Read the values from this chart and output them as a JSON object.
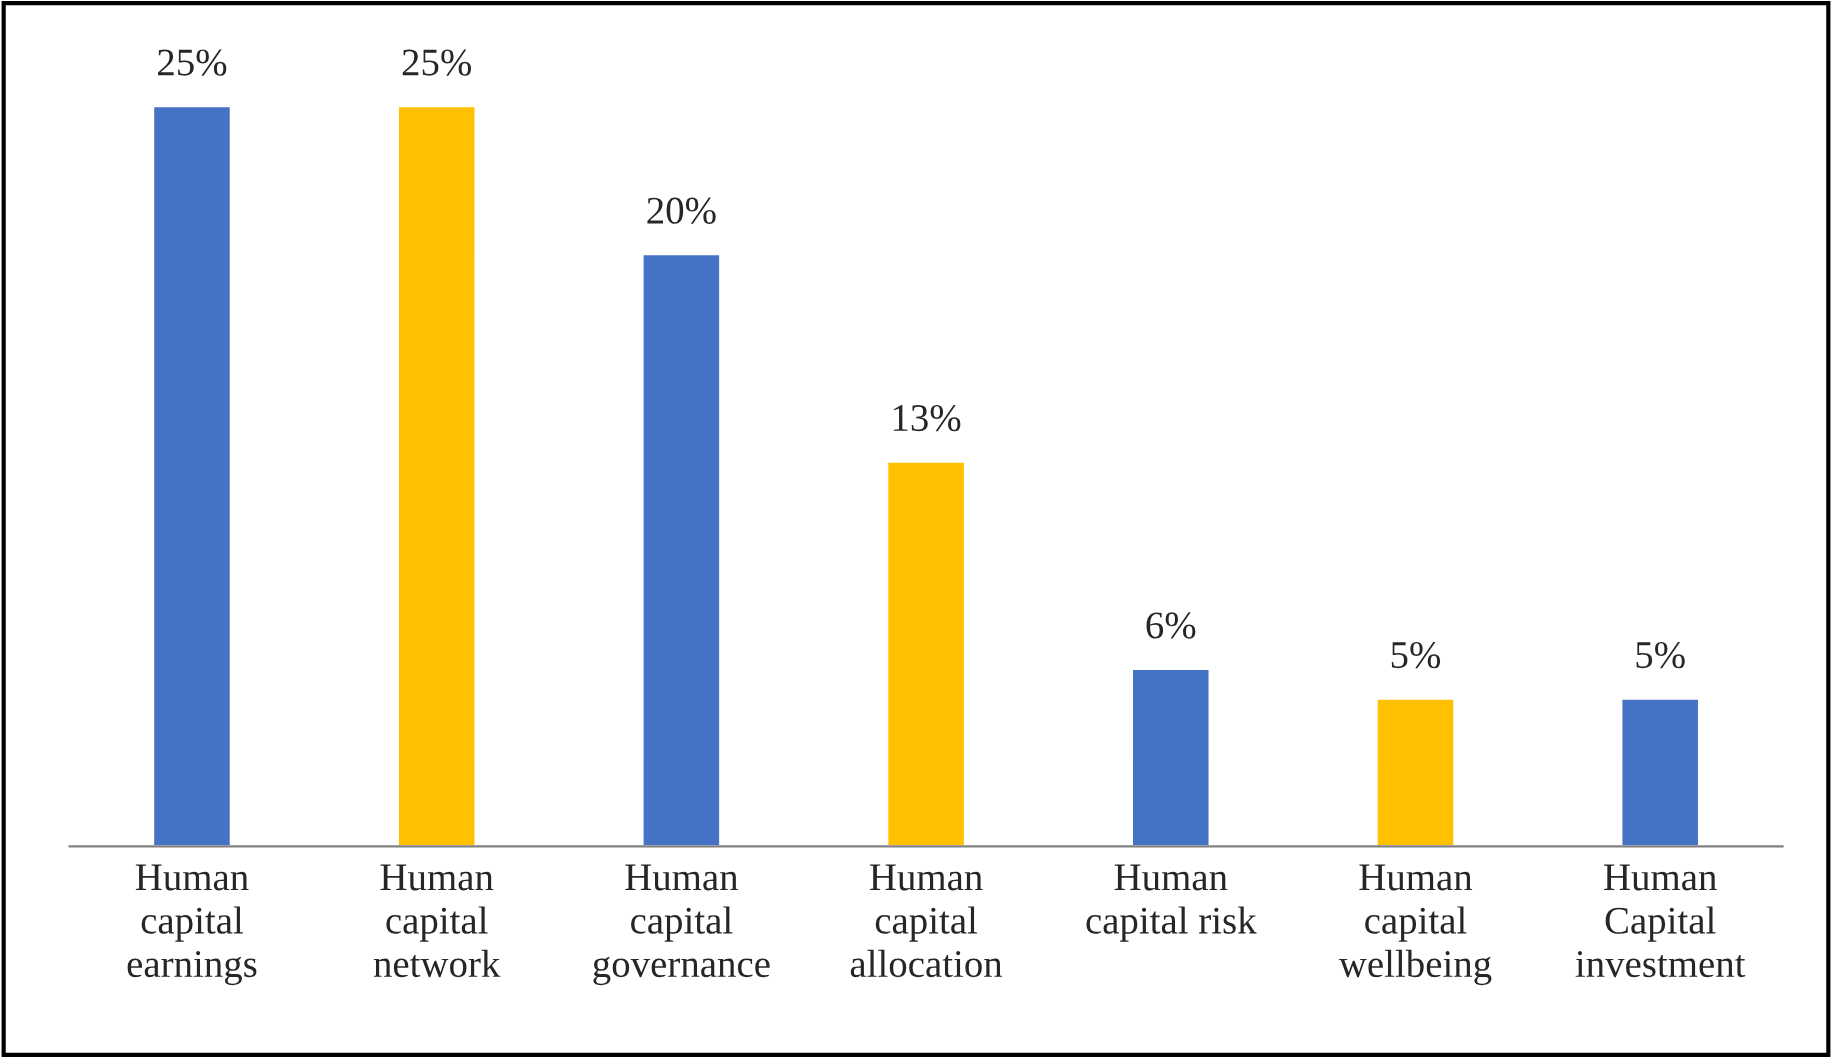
{
  "chart_data": {
    "type": "bar",
    "categories": [
      "Human\ncapital\nearnings",
      "Human\ncapital\nnetwork",
      "Human\ncapital\ngovernance",
      "Human\ncapital\nallocation",
      "Human\ncapital risk",
      "Human\ncapital\nwellbeing",
      "Human\nCapital\ninvestment"
    ],
    "values": [
      25,
      25,
      20,
      13,
      6,
      5,
      5
    ],
    "value_labels": [
      "25%",
      "25%",
      "20%",
      "13%",
      "6%",
      "5%",
      "5%"
    ],
    "colors": [
      "#4472c4",
      "#ffc000",
      "#4472c4",
      "#ffc000",
      "#4472c4",
      "#ffc000",
      "#4472c4"
    ],
    "grid": false,
    "legend": false
  }
}
